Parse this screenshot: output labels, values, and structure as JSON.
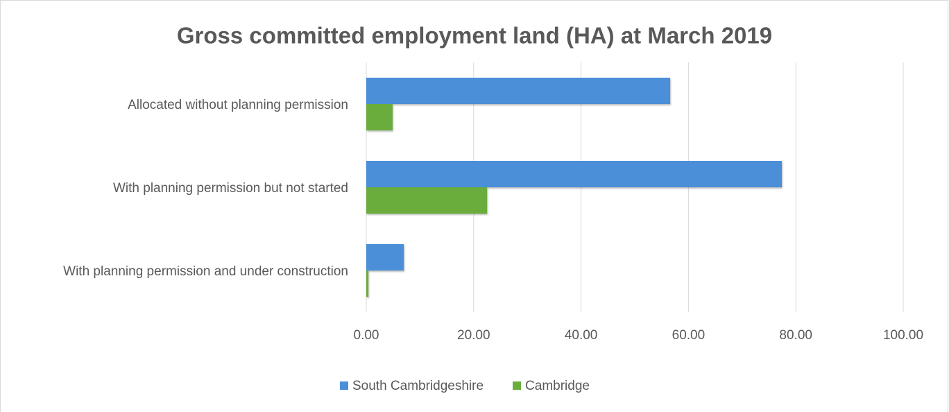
{
  "chart_data": {
    "type": "bar",
    "orientation": "horizontal",
    "title": "Gross committed employment land (HA) at March 2019",
    "categories": [
      "Allocated without planning permission",
      "With planning permission but not started",
      "With planning permission and under construction"
    ],
    "series": [
      {
        "name": "South Cambridgeshire",
        "color": "#4a8fd8",
        "values": [
          56.6,
          77.4,
          7.0
        ]
      },
      {
        "name": "Cambridge",
        "color": "#6aad3c",
        "values": [
          4.9,
          22.5,
          0.4
        ]
      }
    ],
    "xlim": [
      0,
      100
    ],
    "xticks": [
      {
        "value": 0,
        "label": "0.00"
      },
      {
        "value": 20,
        "label": "20.00"
      },
      {
        "value": 40,
        "label": "40.00"
      },
      {
        "value": 60,
        "label": "60.00"
      },
      {
        "value": 80,
        "label": "80.00"
      },
      {
        "value": 100,
        "label": "100.00"
      }
    ],
    "grid": true,
    "legend": "bottom"
  }
}
